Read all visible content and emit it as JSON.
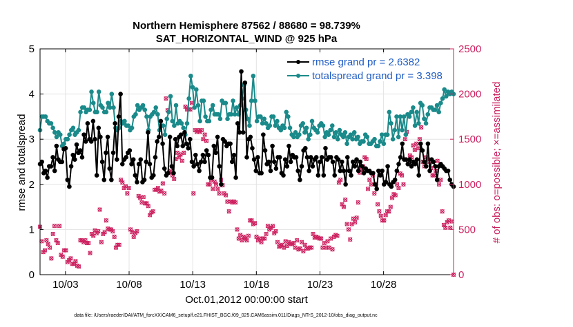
{
  "chart_data": {
    "type": "line",
    "title": "Northern Hemisphere 87562 / 88680 = 98.739%",
    "subtitle": "SAT_HORIZONTAL_WIND @ 925 hPa",
    "xlabel": "Oct.01,2012 00:00:00 start",
    "ylabel_left": "rmse and totalspread",
    "ylabel_right": "# of obs: o=possible; ×=assimilated",
    "footer": "data file: /Users/raeder/DAI/ATM_forcXX/CAM6_setup/f.e21.FHIST_BGC.f09_025.CAM6assim.011/Diags_NTrS_2012-10/obs_diag_output.nc",
    "xlim": [
      1,
      33.5
    ],
    "ylim_left": [
      0,
      5
    ],
    "ylim_right": [
      0,
      2500
    ],
    "x_ticks": [
      3,
      8,
      13,
      18,
      23,
      28
    ],
    "x_tick_labels": [
      "10/03",
      "10/08",
      "10/13",
      "10/18",
      "10/23",
      "10/28"
    ],
    "y_left_ticks": [
      0,
      1,
      2,
      3,
      4,
      5
    ],
    "y_right_ticks": [
      0,
      500,
      1000,
      1500,
      2000,
      2500
    ],
    "grid": true,
    "legend_position": "top-right",
    "series": [
      {
        "name": "rmse grand pr = 2.6382",
        "axis": "left",
        "color": "#000000",
        "values": [
          2.45,
          2.5,
          2.25,
          2.3,
          2.15,
          2.4,
          2.4,
          2.6,
          2.3,
          2.85,
          2.55,
          2.5,
          2.5,
          2.78,
          2.8,
          2.1,
          1.95,
          2.4,
          2.65,
          2.55,
          2.88,
          2.7,
          2.75,
          2.6,
          3.1,
          2.95,
          3.35,
          3.0,
          2.95,
          3.4,
          3.0,
          2.2,
          3.25,
          3.05,
          2.5,
          2.1,
          2.7,
          3.05,
          2.35,
          2.1,
          2.7,
          3.35,
          2.55,
          3.5,
          4.0,
          2.45,
          2.55,
          2.6,
          2.7,
          2.75,
          2.45,
          2.55,
          2.2,
          2.05,
          2.45,
          2.55,
          2.05,
          2.1,
          2.5,
          3.15,
          2.45,
          2.15,
          2.2,
          2.6,
          2.95,
          3.05,
          3.4,
          2.9,
          2.35,
          2.2,
          2.25,
          3.05,
          2.4,
          2.25,
          3.0,
          2.85,
          3.05,
          3.1,
          2.85,
          3.15,
          2.9,
          2.8,
          3.0,
          2.5,
          2.4,
          2.65,
          2.45,
          2.3,
          2.5,
          2.65,
          2.5,
          2.75,
          2.65,
          2.15,
          2.15,
          2.85,
          2.7,
          3.05,
          2.4,
          2.0,
          3.0,
          2.95,
          2.85,
          2.9,
          2.9,
          2.5,
          2.65,
          2.15,
          3.35,
          3.15,
          4.5,
          3.15,
          4.25,
          2.6,
          3.0,
          3.05,
          2.8,
          2.55,
          2.3,
          2.6,
          2.25,
          2.25,
          3.1,
          2.75,
          2.45,
          2.5,
          2.3,
          2.85,
          2.5,
          2.35,
          2.6,
          2.6,
          2.25,
          2.2,
          2.55,
          2.4,
          2.85,
          2.5,
          2.65,
          2.6,
          2.6,
          2.3,
          2.1,
          2.4,
          2.75,
          2.8,
          2.6,
          2.3,
          2.6,
          2.4,
          2.55,
          2.6,
          2.2,
          2.5,
          2.6,
          2.2,
          2.8,
          2.55,
          2.6,
          2.6,
          2.5,
          2.2,
          2.6,
          2.55,
          2.3,
          2.5,
          2.3,
          2.0,
          2.6,
          2.3,
          2.2,
          2.5,
          2.4,
          2.55,
          2.3,
          2.5,
          2.4,
          2.25,
          2.35,
          2.3,
          2.3,
          2.25,
          2.25,
          2.0,
          1.9,
          2.3,
          2.2,
          2.3,
          2.0,
          2.05,
          2.4,
          2.0,
          1.95,
          2.05,
          2.1,
          2.3,
          2.45,
          2.6,
          2.9,
          2.55,
          2.55,
          2.45,
          2.55,
          2.4,
          2.5,
          2.45,
          2.55,
          2.2,
          2.9,
          2.75,
          2.5,
          2.4,
          2.9,
          2.3,
          2.55,
          2.5,
          2.4,
          2.1,
          2.4,
          2.45,
          2.4,
          2.35,
          2.3,
          2.3,
          2.1,
          2.0,
          1.95
        ]
      },
      {
        "name": "totalspread grand pr = 3.398",
        "axis": "left",
        "color": "#1b8a8a",
        "values": [
          3.2,
          3.5,
          3.5,
          3.5,
          3.4,
          3.35,
          3.35,
          3.25,
          3.15,
          3.05,
          3.15,
          3.1,
          2.85,
          2.9,
          3.0,
          3.0,
          3.1,
          3.2,
          3.25,
          3.1,
          3.15,
          3.2,
          3.6,
          3.7,
          3.7,
          3.6,
          3.65,
          3.65,
          4.05,
          3.8,
          3.6,
          3.6,
          4.05,
          3.75,
          3.7,
          3.6,
          3.6,
          3.8,
          3.7,
          4.0,
          3.7,
          3.25,
          3.2,
          3.25,
          3.4,
          3.35,
          3.4,
          3.3,
          3.3,
          3.2,
          3.25,
          3.5,
          3.55,
          3.75,
          3.65,
          3.7,
          3.75,
          3.65,
          3.5,
          3.2,
          3.5,
          3.55,
          3.6,
          3.7,
          3.55,
          3.2,
          3.3,
          3.3,
          3.1,
          3.45,
          3.6,
          3.95,
          3.4,
          3.3,
          3.75,
          3.35,
          3.4,
          3.35,
          3.25,
          3.1,
          3.35,
          3.9,
          4.4,
          4.15,
          3.7,
          4.1,
          3.75,
          3.4,
          3.85,
          3.85,
          3.5,
          3.4,
          3.4,
          3.65,
          3.75,
          3.55,
          3.55,
          3.55,
          3.45,
          3.85,
          3.8,
          3.8,
          3.45,
          3.55,
          3.55,
          3.85,
          3.55,
          3.7,
          3.55,
          3.75,
          3.9,
          4.2,
          3.65,
          3.45,
          3.3,
          3.85,
          4.4,
          3.85,
          3.4,
          3.5,
          3.5,
          3.35,
          3.45,
          3.35,
          3.25,
          3.3,
          3.5,
          3.5,
          3.3,
          3.4,
          3.25,
          3.2,
          3.3,
          3.25,
          3.6,
          3.5,
          3.25,
          3.1,
          3.05,
          3.15,
          3.05,
          3.1,
          3.3,
          3.35,
          3.15,
          3.25,
          3.0,
          3.1,
          3.4,
          3.25,
          3.2,
          3.15,
          3.3,
          3.35,
          3.3,
          3.05,
          3.15,
          3.1,
          3.2,
          3.3,
          3.05,
          3.15,
          3.0,
          3.2,
          3.1,
          3.05,
          3.15,
          2.9,
          3.05,
          3.1,
          3.0,
          3.15,
          3.0,
          3.05,
          2.9,
          2.95,
          2.95,
          3.1,
          3.05,
          2.9,
          2.9,
          2.95,
          3.0,
          2.85,
          2.85,
          2.95,
          3.1,
          2.9,
          3.1,
          3.1,
          3.6,
          3.35,
          3.0,
          3.2,
          3.5,
          3.05,
          3.5,
          3.2,
          3.5,
          3.1,
          3.55,
          3.5,
          3.6,
          3.7,
          3.3,
          3.6,
          3.35,
          3.8,
          3.75,
          3.45,
          3.35,
          3.55,
          3.7,
          3.7,
          3.65,
          3.65,
          3.75,
          3.6,
          3.8,
          3.9,
          4.1,
          3.95,
          4.05,
          4.0,
          4.05,
          4.0
        ]
      },
      {
        "name": "",
        "axis": "right",
        "color": "#cc1f5e",
        "values": [
          530,
          370,
          250,
          270,
          380,
          340,
          300,
          180,
          450,
          540,
          380,
          350,
          540,
          220,
          200,
          270,
          270,
          140,
          160,
          180,
          120,
          120,
          150,
          100,
          90,
          380,
          380,
          360,
          380,
          350,
          350,
          240,
          450,
          430,
          490,
          460,
          480,
          720,
          360,
          450,
          470,
          600,
          510,
          500,
          500,
          480,
          420,
          300,
          330,
          330,
          1050,
          1020,
          960,
          980,
          900,
          960,
          500,
          470,
          420,
          460,
          480,
          870,
          850,
          800,
          860,
          790,
          790,
          760,
          660,
          690,
          700,
          940,
          940,
          960,
          920,
          930,
          1010,
          900,
          1950,
          1820,
          1130,
          1150,
          1100,
          1060,
          1280,
          1350,
          1300,
          1330,
          1260,
          1350,
          1860,
          1830,
          1830,
          1830,
          1900,
          900,
          1600,
          1580,
          1600,
          1580,
          1600,
          1500,
          1550,
          1480,
          1000,
          1000,
          1050,
          950,
          1030,
          1000,
          950,
          900,
          1050,
          990,
          900,
          880,
          810,
          700,
          810,
          800,
          810,
          800,
          500,
          400,
          440,
          380,
          420,
          400,
          380,
          430,
          600,
          600,
          560,
          570,
          420,
          380,
          400,
          360,
          400,
          400,
          450,
          540,
          500,
          520,
          540,
          460,
          480,
          360,
          310,
          320,
          330,
          300,
          370,
          320,
          360,
          340,
          340,
          350,
          300,
          380,
          280,
          290,
          360,
          260,
          330,
          290,
          290,
          300,
          300,
          450,
          410,
          420,
          410,
          400,
          400,
          300,
          350,
          300,
          370,
          300,
          400,
          280,
          420,
          440,
          430,
          1020,
          1050,
          780,
          750,
          830,
          560,
          500,
          390,
          560,
          620,
          580,
          630,
          800,
          1130,
          1160,
          1200,
          1300,
          1280,
          950,
          1050,
          1000,
          1100,
          900,
          1000,
          780,
          700,
          650,
          600,
          600,
          660,
          700,
          700,
          750,
          850,
          890,
          880,
          1000,
          960,
          1120,
          1100,
          1000,
          1500,
          1580,
          1250,
          1320,
          1300,
          1430,
          1380,
          1450,
          1400,
          1500,
          1630,
          1250,
          1200,
          1300,
          1280,
          1250,
          1180,
          1100,
          1100,
          1150,
          1260,
          1000,
          1050,
          700,
          550,
          520,
          580,
          600,
          520,
          590,
          0
        ]
      }
    ]
  }
}
